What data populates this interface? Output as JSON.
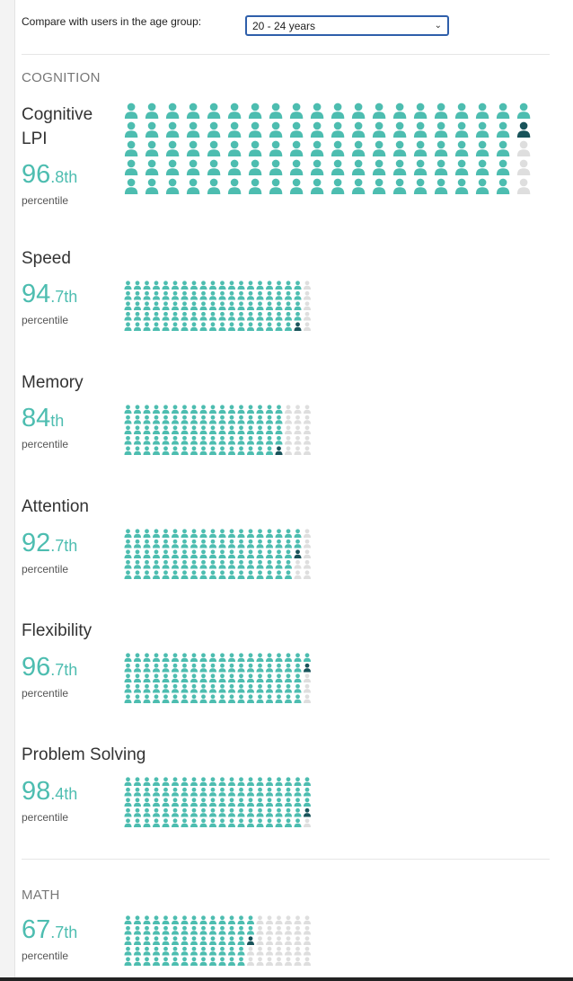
{
  "age_filter": {
    "label": "Compare with users in the age group:",
    "selected": "20 - 24 years"
  },
  "colors": {
    "filled": "#4dbdb0",
    "you": "#18535a",
    "empty": "#dedede"
  },
  "icons": {
    "person": "person-icon"
  },
  "sections": [
    {
      "label": "COGNITION",
      "metrics": [
        {
          "title_lines": [
            "Cognitive",
            "LPI"
          ],
          "value_main": "96",
          "value_small": ".8th",
          "subtitle": "percentile",
          "percentile": 96.8
        },
        {
          "title_lines": [
            "Speed"
          ],
          "value_main": "94",
          "value_small": ".7th",
          "subtitle": "percentile",
          "percentile": 94.7
        },
        {
          "title_lines": [
            "Memory"
          ],
          "value_main": "84",
          "value_small": "th",
          "subtitle": "percentile",
          "percentile": 84
        },
        {
          "title_lines": [
            "Attention"
          ],
          "value_main": "92",
          "value_small": ".7th",
          "subtitle": "percentile",
          "percentile": 92.7
        },
        {
          "title_lines": [
            "Flexibility"
          ],
          "value_main": "96",
          "value_small": ".7th",
          "subtitle": "percentile",
          "percentile": 96.7
        },
        {
          "title_lines": [
            "Problem Solving"
          ],
          "value_main": "98",
          "value_small": ".4th",
          "subtitle": "percentile",
          "percentile": 98.4
        }
      ]
    },
    {
      "label": "MATH",
      "metrics": [
        {
          "title_lines": [],
          "value_main": "67",
          "value_small": ".7th",
          "subtitle": "percentile",
          "percentile": 67.7
        }
      ]
    }
  ]
}
